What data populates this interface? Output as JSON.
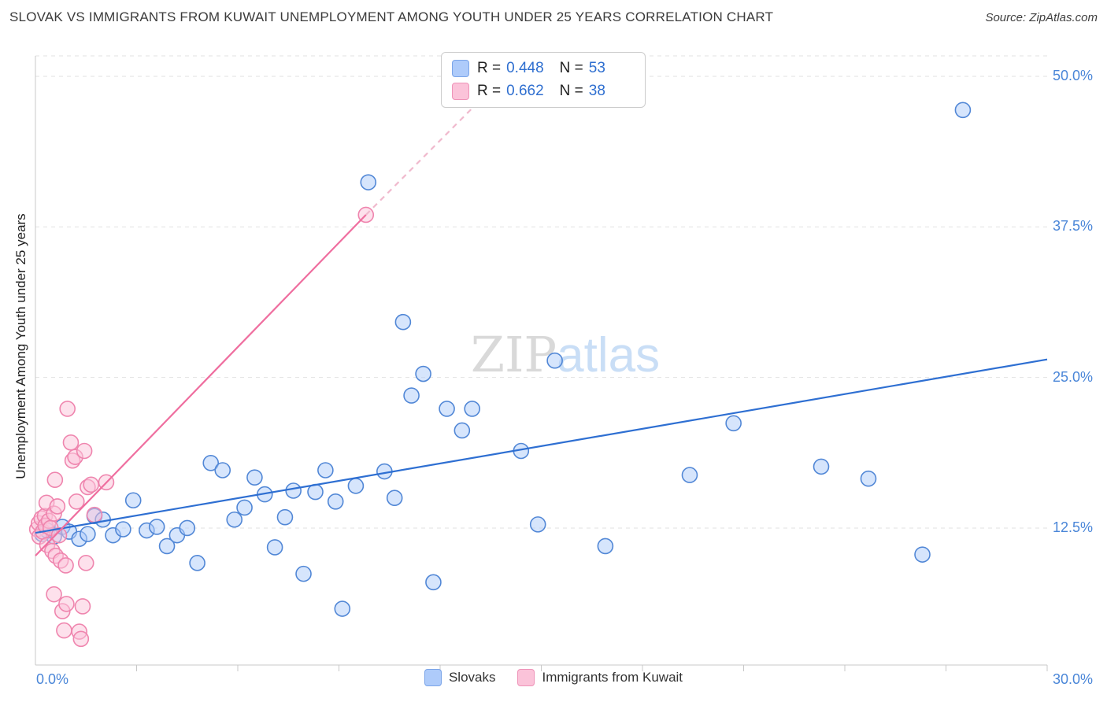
{
  "header": {
    "title": "SLOVAK VS IMMIGRANTS FROM KUWAIT UNEMPLOYMENT AMONG YOUTH UNDER 25 YEARS CORRELATION CHART",
    "source": "Source: ZipAtlas.com"
  },
  "axes": {
    "y_label": "Unemployment Among Youth under 25 years",
    "y_ticks": [
      "50.0%",
      "37.5%",
      "25.0%",
      "12.5%"
    ],
    "x_min_label": "0.0%",
    "x_max_label": "30.0%"
  },
  "watermark": {
    "part1": "ZIP",
    "part2": "atlas"
  },
  "stats_legend": {
    "rows": [
      {
        "series": "Slovaks",
        "swatch_color": "#aecbfa",
        "r_label": "R =",
        "r_value": "0.448",
        "n_label": "N =",
        "n_value": "53"
      },
      {
        "series": "Immigrants from Kuwait",
        "swatch_color": "#fbc3d9",
        "r_label": "R =",
        "r_value": "0.662",
        "n_label": "N =",
        "n_value": "38"
      }
    ]
  },
  "bottom_legend": [
    {
      "label": "Slovaks",
      "color": "#aecbfa"
    },
    {
      "label": "Immigrants from Kuwait",
      "color": "#fbc3d9"
    }
  ],
  "chart_data": {
    "type": "scatter",
    "title": "SLOVAK VS IMMIGRANTS FROM KUWAIT UNEMPLOYMENT AMONG YOUTH UNDER 25 YEARS CORRELATION CHART",
    "xlabel": "",
    "ylabel": "Unemployment Among Youth under 25 years",
    "xlim": [
      0,
      30
    ],
    "ylim": [
      0,
      52
    ],
    "x_tick_step_percent": 3,
    "y_ticks_percent": [
      50,
      37.5,
      25,
      12.5
    ],
    "layout": {
      "grid": "horizontal-dashed",
      "legend_position": "top-center",
      "y_labels_side": "right"
    },
    "series": [
      {
        "name": "Slovaks",
        "R": 0.448,
        "N": 53,
        "fill": "#aecbfa",
        "stroke": "#5187d6",
        "points": [
          [
            0.2,
            12.0
          ],
          [
            0.35,
            12.3
          ],
          [
            0.55,
            11.8
          ],
          [
            0.8,
            12.6
          ],
          [
            1.0,
            12.2
          ],
          [
            1.3,
            11.6
          ],
          [
            1.55,
            12.0
          ],
          [
            1.75,
            13.5
          ],
          [
            2.0,
            13.2
          ],
          [
            2.3,
            11.9
          ],
          [
            2.6,
            12.4
          ],
          [
            2.9,
            14.8
          ],
          [
            3.3,
            12.3
          ],
          [
            3.6,
            12.6
          ],
          [
            3.9,
            11.0
          ],
          [
            4.2,
            11.9
          ],
          [
            4.5,
            12.5
          ],
          [
            4.8,
            9.6
          ],
          [
            5.2,
            17.9
          ],
          [
            5.55,
            17.3
          ],
          [
            5.9,
            13.2
          ],
          [
            6.2,
            14.2
          ],
          [
            6.5,
            16.7
          ],
          [
            6.8,
            15.3
          ],
          [
            7.1,
            10.9
          ],
          [
            7.4,
            13.4
          ],
          [
            7.65,
            15.6
          ],
          [
            7.95,
            8.7
          ],
          [
            8.3,
            15.5
          ],
          [
            8.6,
            17.3
          ],
          [
            8.9,
            14.7
          ],
          [
            9.1,
            5.8
          ],
          [
            9.5,
            16.0
          ],
          [
            9.87,
            41.2
          ],
          [
            10.35,
            17.2
          ],
          [
            10.65,
            15.0
          ],
          [
            10.9,
            29.6
          ],
          [
            11.15,
            23.5
          ],
          [
            11.5,
            25.3
          ],
          [
            11.8,
            8.0
          ],
          [
            12.2,
            22.4
          ],
          [
            12.65,
            20.6
          ],
          [
            12.95,
            22.4
          ],
          [
            14.4,
            18.9
          ],
          [
            14.9,
            12.8
          ],
          [
            15.4,
            26.4
          ],
          [
            16.9,
            11.0
          ],
          [
            19.4,
            16.9
          ],
          [
            20.7,
            21.2
          ],
          [
            23.3,
            17.6
          ],
          [
            24.7,
            16.6
          ],
          [
            26.3,
            10.3
          ],
          [
            27.5,
            47.2
          ]
        ]
      },
      {
        "name": "Immigrants from Kuwait",
        "R": 0.662,
        "N": 38,
        "fill": "#fbc3d9",
        "stroke": "#ef85ae",
        "points": [
          [
            0.05,
            12.4
          ],
          [
            0.1,
            12.9
          ],
          [
            0.12,
            11.8
          ],
          [
            0.18,
            13.3
          ],
          [
            0.22,
            12.2
          ],
          [
            0.28,
            13.5
          ],
          [
            0.3,
            12.7
          ],
          [
            0.33,
            14.6
          ],
          [
            0.35,
            11.1
          ],
          [
            0.4,
            13.1
          ],
          [
            0.45,
            12.5
          ],
          [
            0.5,
            10.6
          ],
          [
            0.55,
            13.7
          ],
          [
            0.55,
            7.0
          ],
          [
            0.58,
            16.5
          ],
          [
            0.6,
            10.2
          ],
          [
            0.65,
            14.3
          ],
          [
            0.7,
            11.9
          ],
          [
            0.75,
            9.8
          ],
          [
            0.8,
            5.6
          ],
          [
            0.85,
            4.0
          ],
          [
            0.9,
            9.4
          ],
          [
            0.92,
            6.2
          ],
          [
            0.95,
            22.4
          ],
          [
            1.05,
            19.6
          ],
          [
            1.1,
            18.1
          ],
          [
            1.18,
            18.4
          ],
          [
            1.22,
            14.7
          ],
          [
            1.3,
            3.9
          ],
          [
            1.35,
            3.3
          ],
          [
            1.4,
            6.0
          ],
          [
            1.45,
            18.9
          ],
          [
            1.5,
            9.6
          ],
          [
            1.55,
            15.9
          ],
          [
            1.65,
            16.1
          ],
          [
            1.75,
            13.6
          ],
          [
            2.1,
            16.3
          ],
          [
            9.8,
            38.5
          ]
        ]
      }
    ],
    "trend_lines": [
      {
        "series": "Slovaks",
        "color": "#2e6fd2",
        "x1": 0,
        "y1": 12.1,
        "x2": 30,
        "y2": 26.5,
        "dashed": false
      },
      {
        "series": "Immigrants from Kuwait",
        "color": "#ef6e9f",
        "x1": 0,
        "y1": 10.2,
        "x2": 9.8,
        "y2": 38.5,
        "dashed": false
      },
      {
        "series": "Immigrants from Kuwait (extrapolated)",
        "color": "#f0b9cd",
        "x1": 9.8,
        "y1": 38.5,
        "x2": 14.5,
        "y2": 51.7,
        "dashed": true
      }
    ]
  }
}
